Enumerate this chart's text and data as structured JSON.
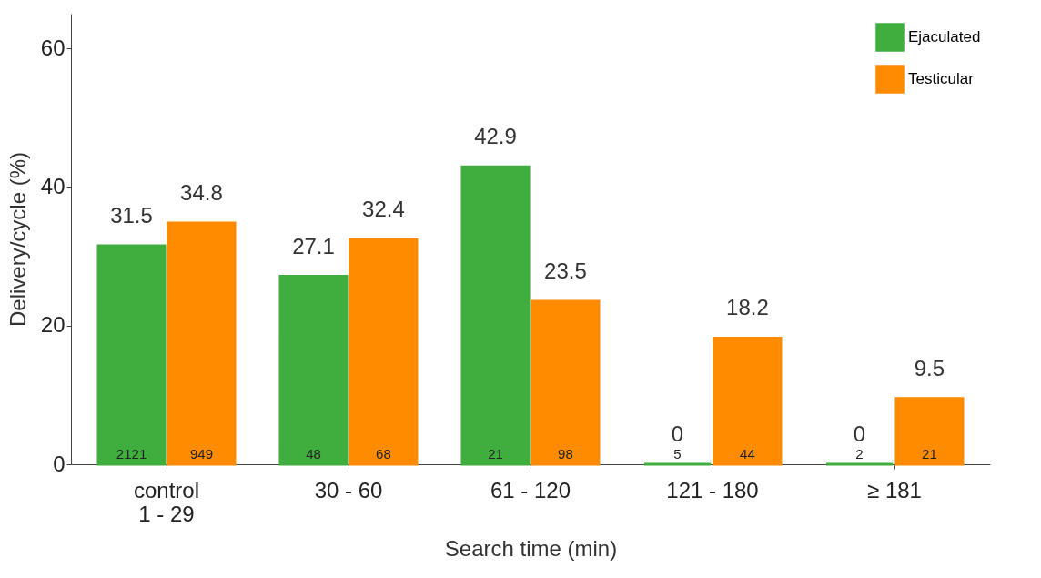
{
  "chart_data": {
    "type": "bar",
    "xlabel": "Search time (min)",
    "ylabel": "Delivery/cycle (%)",
    "categories": [
      "control\n1 - 29",
      "30 - 60",
      "61 - 120",
      "121 - 180",
      "≥ 181"
    ],
    "series": [
      {
        "name": "Ejaculated",
        "color": "#3fae3f",
        "values": [
          31.5,
          27.1,
          42.9,
          0,
          0
        ]
      },
      {
        "name": "Testicular",
        "color": "#ff8c00",
        "values": [
          34.8,
          32.4,
          23.5,
          18.2,
          9.5
        ]
      }
    ],
    "ylim": [
      0,
      65
    ],
    "yticks": [
      0,
      20,
      40,
      60
    ],
    "grid": false,
    "legend": "top right",
    "data_labels": true,
    "annotations": [
      {
        "text": "2121",
        "x": "control\n1 - 29",
        "y": 0
      },
      {
        "text": "949",
        "x": "control\n1 - 29",
        "y": 0
      },
      {
        "text": "48",
        "x": "30 - 60",
        "y": 0
      },
      {
        "text": "68",
        "x": "30 - 60",
        "y": 0
      },
      {
        "text": "21",
        "x": "61 - 120",
        "y": 0
      },
      {
        "text": "98",
        "x": "61 - 120",
        "y": 0
      },
      {
        "text": "5",
        "x": "121 - 180",
        "y": 0
      },
      {
        "text": "44",
        "x": "121 - 180",
        "y": 0
      },
      {
        "text": "2",
        "x": "≥ 181",
        "y": 0
      },
      {
        "text": "21",
        "x": "≥ 181",
        "y": 0
      }
    ]
  }
}
